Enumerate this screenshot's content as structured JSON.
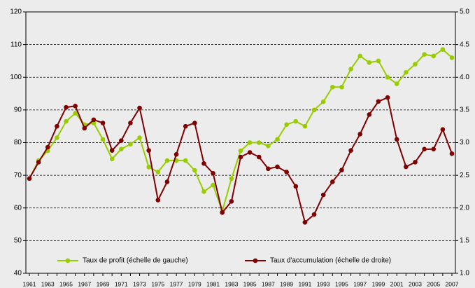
{
  "chart_data": {
    "type": "line",
    "categories": [
      "1961",
      null,
      "1963",
      null,
      "1965",
      null,
      "1967",
      null,
      "1969",
      null,
      "1971",
      null,
      "1973",
      null,
      "1975",
      null,
      "1977",
      null,
      "1979",
      null,
      "1981",
      null,
      "1983",
      null,
      "1985",
      null,
      "1987",
      null,
      "1989",
      null,
      "1991",
      null,
      "1993",
      null,
      "1995",
      null,
      "1997",
      null,
      "1999",
      null,
      "2001",
      null,
      "2003",
      null,
      "2005",
      null,
      "2007"
    ],
    "series": [
      {
        "name": "Taux de profit (échelle de gauche)",
        "color": "#99cc00",
        "values": [
          69,
          74.5,
          77.5,
          81.5,
          86.5,
          89,
          85.5,
          86,
          81,
          75,
          78,
          79.5,
          81.5,
          72.5,
          71,
          74.5,
          74.5,
          74.5,
          71.5,
          65,
          67,
          59,
          69,
          77.5,
          80,
          80,
          79,
          81,
          85.5,
          86.5,
          85,
          90,
          92.5,
          97,
          97,
          102.5,
          106.5,
          104.5,
          105,
          100,
          98,
          101.5,
          104,
          107,
          106.5,
          108.5,
          106
        ]
      },
      {
        "name": "Taux d'accumulation (échelle de droite)",
        "color": "#7f0000",
        "axis": "y2",
        "values": [
          2.45,
          2.7,
          2.93,
          3.25,
          3.54,
          3.56,
          3.22,
          3.35,
          3.3,
          2.88,
          3.03,
          3.3,
          3.53,
          2.88,
          2.12,
          2.4,
          2.82,
          3.25,
          3.3,
          2.68,
          2.53,
          1.93,
          2.1,
          2.78,
          2.85,
          2.78,
          2.6,
          2.63,
          2.55,
          2.33,
          1.78,
          1.9,
          2.2,
          2.4,
          2.58,
          2.88,
          3.13,
          3.43,
          3.63,
          3.69,
          3.05,
          2.63,
          2.7,
          2.9,
          2.9,
          3.2,
          2.83
        ]
      }
    ],
    "ylim": [
      40,
      120
    ],
    "yticks": [
      40,
      50,
      60,
      70,
      80,
      90,
      100,
      110,
      120
    ],
    "y2lim": [
      1,
      5
    ],
    "y2ticks": [
      {
        "value": 1,
        "label": "1.0"
      },
      {
        "value": 1.5,
        "label": "1.5"
      },
      {
        "value": 2,
        "label": "2.0"
      },
      {
        "value": 2.5,
        "label": "2.5"
      },
      {
        "value": 3,
        "label": "3.0"
      },
      {
        "value": 3.5,
        "label": "3.5"
      },
      {
        "value": 4,
        "label": "4.0"
      },
      {
        "value": 4.5,
        "label": "4.5"
      },
      {
        "value": 5,
        "label": "5.0"
      }
    ],
    "grid": true,
    "legend": "lower left"
  }
}
